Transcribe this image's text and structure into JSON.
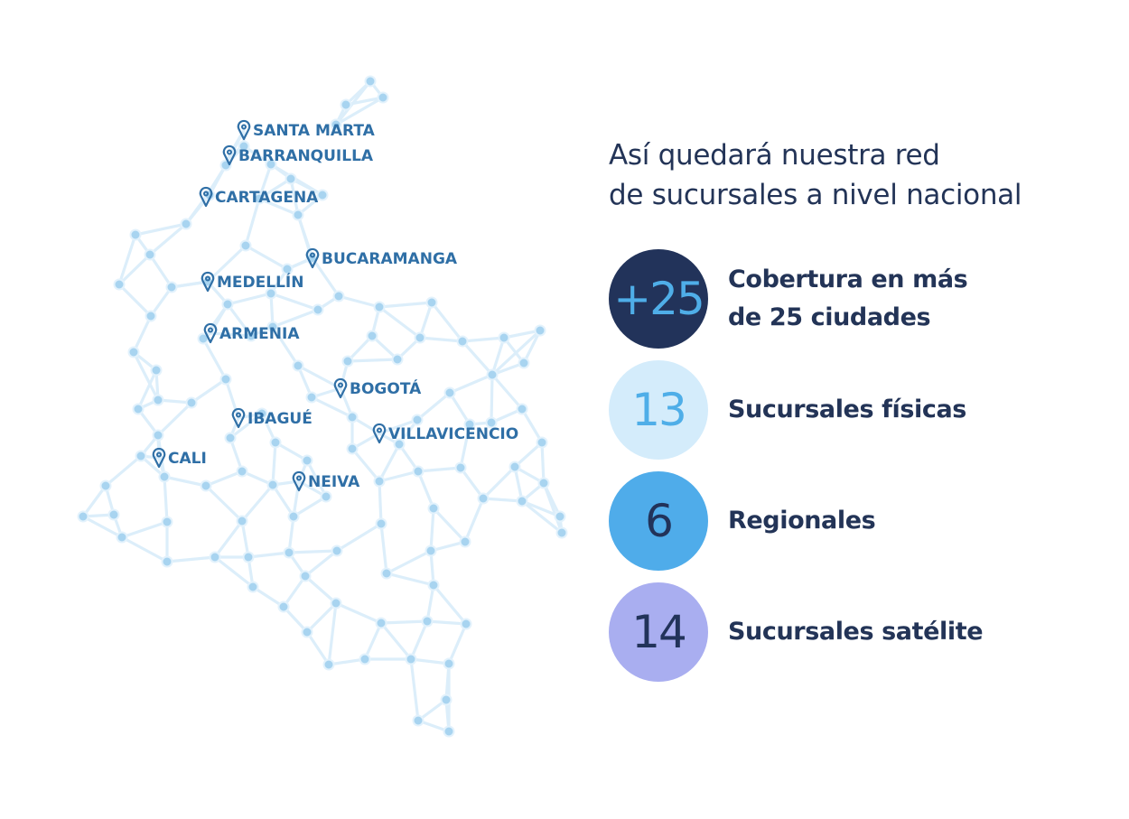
{
  "map": {
    "cities": [
      {
        "name": "SANTA MARTA"
      },
      {
        "name": "BARRANQUILLA"
      },
      {
        "name": "CARTAGENA"
      },
      {
        "name": "BUCARAMANGA"
      },
      {
        "name": "MEDELLÍN"
      },
      {
        "name": "ARMENIA"
      },
      {
        "name": "BOGOTÁ"
      },
      {
        "name": "IBAGUÉ"
      },
      {
        "name": "VILLAVICENCIO"
      },
      {
        "name": "CALI"
      },
      {
        "name": "NEIVA"
      }
    ],
    "pin_icon": "map-pin-icon",
    "node_color": "#a8d4f0",
    "line_color": "#dceefa",
    "label_color": "#2f6fa6"
  },
  "panel": {
    "title_line1": "Así quedará nuestra red",
    "title_line2": "de sucursales a nivel nacional",
    "stats": [
      {
        "value": "+25",
        "label": "Cobertura en más\nde 25 ciudades",
        "bg": "#22335a",
        "fg": "#4faee8"
      },
      {
        "value": "13",
        "label": "Sucursales físicas",
        "bg": "#d4ecfb",
        "fg": "#4faee8"
      },
      {
        "value": "6",
        "label": "Regionales",
        "bg": "#4facea",
        "fg": "#22335a"
      },
      {
        "value": "14",
        "label": "Sucursales satélite",
        "bg": "#a9aef0",
        "fg": "#22335a"
      }
    ]
  }
}
